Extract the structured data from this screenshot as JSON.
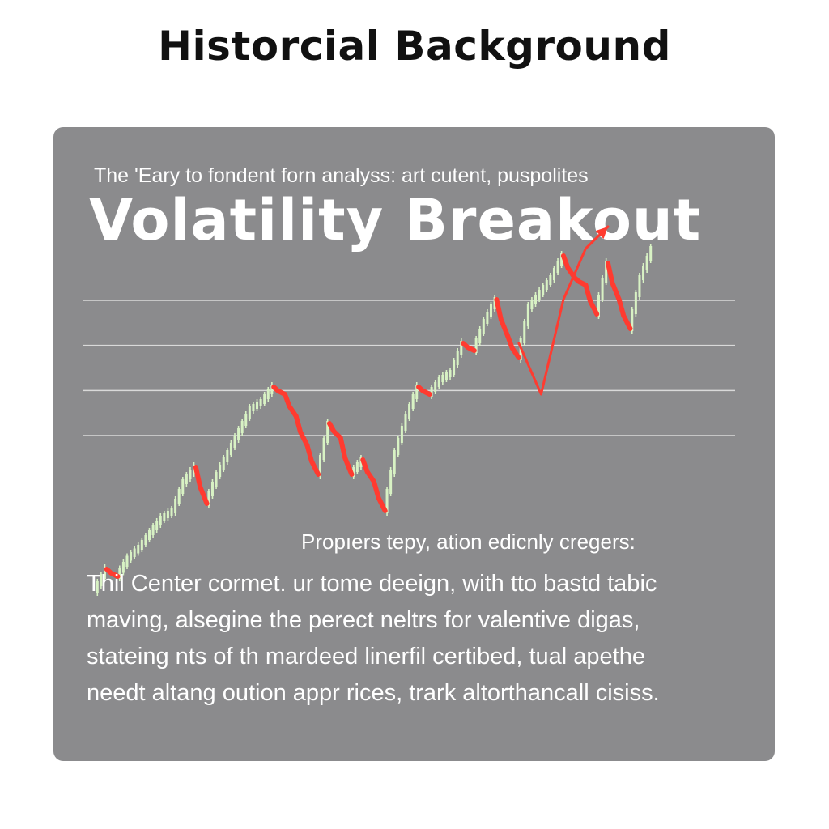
{
  "page": {
    "title": "Historcial Background"
  },
  "card": {
    "kicker": "The 'Eary to fondent forn analyss: art cutent, puspolites",
    "headline": "Volatility Breakout",
    "caption_lead": "Propıers tepy, ation edicnly cregers:",
    "caption_lines": [
      "Thil Center cormet. ur tome deeign, with tto bastd tabic",
      "maving, alsegine the perect neltrs for valentive digas,",
      "stateing nts of th mardeed linerfil certibed, tual apethe",
      "needt altang oution appr rices, trark altorthancall cisiss."
    ]
  },
  "colors": {
    "page_background": "#ffffff",
    "card_background": "#8b8b8d",
    "text": "#ffffff",
    "up_candle": "#d8f2c4",
    "down_move": "#ff3b30",
    "grid": "#d9d9d9"
  },
  "chart_data": {
    "type": "line",
    "title": "",
    "xlabel": "",
    "ylabel": "",
    "grid": true,
    "grid_lines": 4,
    "xlim": [
      0,
      100
    ],
    "ylim": [
      0,
      100
    ],
    "series": [
      {
        "x": [
          0,
          2,
          4,
          6,
          8,
          10,
          12,
          14,
          16,
          18,
          20,
          22,
          24,
          26,
          28,
          30,
          32,
          34,
          36,
          38,
          40,
          42,
          44,
          46,
          48,
          50,
          52,
          54,
          56,
          58,
          60,
          62,
          64,
          66,
          68,
          70,
          72,
          74,
          76,
          78,
          80,
          82,
          84,
          86,
          88,
          90,
          92,
          94,
          96,
          98,
          100
        ],
        "values": [
          6,
          12,
          10,
          15,
          18,
          22,
          26,
          28,
          36,
          40,
          30,
          38,
          44,
          50,
          56,
          58,
          62,
          60,
          54,
          46,
          38,
          52,
          48,
          38,
          42,
          36,
          28,
          44,
          54,
          62,
          60,
          64,
          66,
          74,
          72,
          80,
          86,
          76,
          70,
          84,
          88,
          92,
          98,
          92,
          90,
          82,
          96,
          86,
          78,
          92,
          100
        ]
      }
    ],
    "breakout": {
      "x": [
        76,
        80,
        84,
        88,
        92
      ],
      "values": [
        74,
        60,
        86,
        100,
        106
      ]
    }
  }
}
